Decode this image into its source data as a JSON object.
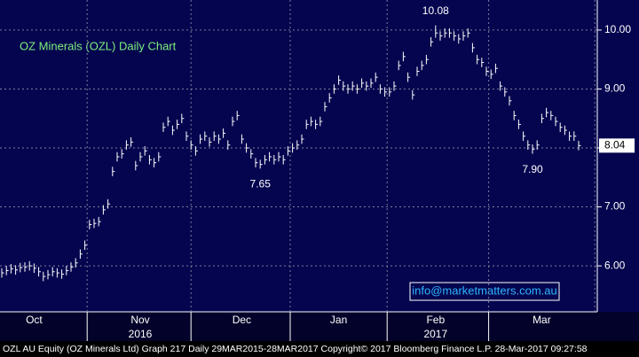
{
  "chart_data": {
    "type": "ohlc",
    "title": "OZ Minerals (OZL)  Daily Chart",
    "watermark": "info@marketmatters.com.au",
    "footer": "OZL AU Equity (OZ Minerals Ltd) Graph 217  Daily 29MAR2015-28MAR2017 Copyright© 2017 Bloomberg Finance L.P. 28-Mar-2017 09:27:58",
    "years": [
      "2016",
      "2017"
    ],
    "categories": [
      null,
      null,
      null,
      null,
      null,
      null,
      null,
      "Oct",
      null,
      null,
      null,
      null,
      null,
      null,
      null,
      null,
      null,
      null,
      null,
      null,
      null,
      null,
      null,
      null,
      null,
      null,
      null,
      null,
      null,
      null,
      "Nov",
      null,
      null,
      null,
      null,
      null,
      null,
      null,
      null,
      null,
      null,
      null,
      null,
      null,
      null,
      null,
      null,
      null,
      null,
      null,
      null,
      null,
      "Dec",
      null,
      null,
      null,
      null,
      null,
      null,
      null,
      null,
      null,
      null,
      null,
      null,
      null,
      null,
      null,
      null,
      null,
      null,
      null,
      null,
      "Jan",
      null,
      null,
      null,
      null,
      null,
      null,
      null,
      null,
      null,
      null,
      null,
      null,
      null,
      null,
      null,
      null,
      null,
      null,
      null,
      null,
      "Feb",
      null,
      null,
      null,
      null,
      null,
      null,
      null,
      null,
      null,
      null,
      null,
      null,
      null,
      null,
      null,
      null,
      null,
      null,
      null,
      null,
      null,
      null,
      "Mar",
      null,
      null,
      null,
      null,
      null,
      null,
      null,
      null
    ],
    "high": [
      5.96,
      6.0,
      6.03,
      6.01,
      6.05,
      6.06,
      6.08,
      6.04,
      5.98,
      5.9,
      5.93,
      5.98,
      5.96,
      5.94,
      6.0,
      6.06,
      6.13,
      6.28,
      6.43,
      6.78,
      6.8,
      6.83,
      7.03,
      7.13,
      7.68,
      7.93,
      7.98,
      8.13,
      8.18,
      7.78,
      7.93,
      8.03,
      7.88,
      7.83,
      7.93,
      8.43,
      8.53,
      8.38,
      8.48,
      8.58,
      8.28,
      8.13,
      8.03,
      8.23,
      8.28,
      8.18,
      8.28,
      8.23,
      8.33,
      8.13,
      8.53,
      8.63,
      8.23,
      8.08,
      7.98,
      7.83,
      7.8,
      7.88,
      7.93,
      7.88,
      7.93,
      7.88,
      8.03,
      8.08,
      8.13,
      8.23,
      8.48,
      8.53,
      8.48,
      8.53,
      8.78,
      8.93,
      9.08,
      9.23,
      9.13,
      9.08,
      9.13,
      9.08,
      9.18,
      9.13,
      9.18,
      9.28,
      9.08,
      9.03,
      9.03,
      9.13,
      9.48,
      9.63,
      9.28,
      8.98,
      9.38,
      9.48,
      9.58,
      9.88,
      10.08,
      9.98,
      10.03,
      10.03,
      9.98,
      9.93,
      9.98,
      10.03,
      9.78,
      9.58,
      9.53,
      9.38,
      9.33,
      9.43,
      9.13,
      9.03,
      8.88,
      8.63,
      8.48,
      8.28,
      8.13,
      8.06,
      8.13,
      8.58,
      8.68,
      8.63,
      8.53,
      8.43,
      8.38,
      8.28,
      8.28,
      8.12
    ],
    "low": [
      5.8,
      5.84,
      5.87,
      5.85,
      5.89,
      5.9,
      5.92,
      5.88,
      5.82,
      5.74,
      5.77,
      5.82,
      5.8,
      5.78,
      5.84,
      5.9,
      5.97,
      6.12,
      6.27,
      6.62,
      6.64,
      6.67,
      6.87,
      6.97,
      7.52,
      7.77,
      7.82,
      7.97,
      8.02,
      7.62,
      7.77,
      7.87,
      7.72,
      7.67,
      7.77,
      8.27,
      8.37,
      8.22,
      8.32,
      8.42,
      8.12,
      7.97,
      7.87,
      8.07,
      8.12,
      8.02,
      8.12,
      8.07,
      8.17,
      7.97,
      8.37,
      8.47,
      8.07,
      7.92,
      7.82,
      7.67,
      7.65,
      7.72,
      7.77,
      7.72,
      7.77,
      7.72,
      7.87,
      7.92,
      7.97,
      8.07,
      8.32,
      8.37,
      8.32,
      8.37,
      8.62,
      8.77,
      8.92,
      9.07,
      8.97,
      8.92,
      8.97,
      8.92,
      9.02,
      8.97,
      9.02,
      9.12,
      8.92,
      8.87,
      8.87,
      8.97,
      9.32,
      9.47,
      9.12,
      8.82,
      9.22,
      9.32,
      9.42,
      9.72,
      9.87,
      9.82,
      9.87,
      9.87,
      9.82,
      9.77,
      9.82,
      9.87,
      9.62,
      9.42,
      9.37,
      9.22,
      9.17,
      9.27,
      8.97,
      8.87,
      8.72,
      8.47,
      8.32,
      8.12,
      7.97,
      7.9,
      7.97,
      8.42,
      8.52,
      8.47,
      8.37,
      8.27,
      8.22,
      8.12,
      8.12,
      7.96
    ],
    "close": [
      5.88,
      5.92,
      5.95,
      5.93,
      5.97,
      5.98,
      6.0,
      5.96,
      5.9,
      5.82,
      5.85,
      5.9,
      5.88,
      5.86,
      5.92,
      5.98,
      6.05,
      6.2,
      6.35,
      6.7,
      6.72,
      6.75,
      6.95,
      7.05,
      7.6,
      7.85,
      7.9,
      8.05,
      8.1,
      7.7,
      7.85,
      7.95,
      7.8,
      7.75,
      7.85,
      8.35,
      8.45,
      8.3,
      8.4,
      8.5,
      8.2,
      8.05,
      7.95,
      8.15,
      8.2,
      8.1,
      8.2,
      8.15,
      8.25,
      8.05,
      8.45,
      8.55,
      8.15,
      8.0,
      7.9,
      7.75,
      7.72,
      7.8,
      7.85,
      7.8,
      7.85,
      7.8,
      7.95,
      8.0,
      8.05,
      8.15,
      8.4,
      8.45,
      8.4,
      8.45,
      8.7,
      8.85,
      9.0,
      9.15,
      9.05,
      9.0,
      9.05,
      9.0,
      9.1,
      9.05,
      9.1,
      9.2,
      9.0,
      8.95,
      8.95,
      9.05,
      9.4,
      9.55,
      9.2,
      8.9,
      9.3,
      9.4,
      9.5,
      9.8,
      9.95,
      9.9,
      9.95,
      9.95,
      9.9,
      9.85,
      9.9,
      9.95,
      9.7,
      9.5,
      9.45,
      9.3,
      9.25,
      9.35,
      9.05,
      8.95,
      8.8,
      8.55,
      8.4,
      8.2,
      8.05,
      7.98,
      8.05,
      8.5,
      8.6,
      8.55,
      8.45,
      8.35,
      8.3,
      8.2,
      8.2,
      8.04
    ],
    "last_label": "8.04",
    "annotations": [
      {
        "value": 10.08,
        "label": "10.08"
      },
      {
        "value": 7.65,
        "label": "7.65"
      },
      {
        "value": 7.9,
        "label": "7.90"
      }
    ],
    "color": "#ffffff",
    "ylim": [
      5.22,
      10.51
    ],
    "yticks": [
      {
        "value": 6,
        "label": "6.00"
      },
      {
        "value": 7,
        "label": "7.00"
      },
      {
        "value": 8,
        "label": "8.00"
      },
      {
        "value": 9,
        "label": "9.00"
      },
      {
        "value": 10,
        "label": "10.00"
      }
    ],
    "grid": true
  }
}
